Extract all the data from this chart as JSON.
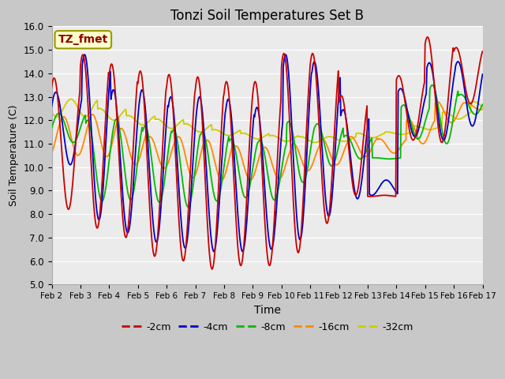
{
  "title": "Tonzi Soil Temperatures Set B",
  "xlabel": "Time",
  "ylabel": "Soil Temperature (C)",
  "label_box": "TZ_fmet",
  "ylim": [
    5.0,
    16.0
  ],
  "yticks": [
    5.0,
    6.0,
    7.0,
    8.0,
    9.0,
    10.0,
    11.0,
    12.0,
    13.0,
    14.0,
    15.0,
    16.0
  ],
  "xtick_labels": [
    "Feb 2",
    "Feb 3",
    "Feb 4",
    "Feb 5",
    "Feb 6",
    "Feb 7",
    "Feb 8",
    "Feb 9",
    "Feb 10",
    "Feb 11",
    "Feb 12",
    "Feb 13",
    "Feb 14",
    "Feb 15",
    "Feb 16",
    "Feb 17"
  ],
  "series_colors": [
    "#cc0000",
    "#0000cc",
    "#00bb00",
    "#ff8800",
    "#cccc00"
  ],
  "series_labels": [
    "-2cm",
    "-4cm",
    "-8cm",
    "-16cm",
    "-32cm"
  ],
  "plot_area_color": "#ebebeb",
  "grid_color": "#ffffff",
  "n_points_per_day": 48,
  "n_days": 15,
  "phase_lags_hours": [
    0.0,
    1.5,
    4.0,
    8.0,
    14.0
  ],
  "neg2cm_peaks": [
    13.8,
    14.8,
    14.4,
    14.1,
    13.95,
    13.85,
    13.65,
    13.65,
    14.85,
    14.85,
    13.05,
    8.75,
    13.9,
    15.55,
    15.1
  ],
  "neg2cm_troughs": [
    8.2,
    7.4,
    7.0,
    6.2,
    6.0,
    5.65,
    5.8,
    5.8,
    6.35,
    7.6,
    8.8,
    8.8,
    11.15,
    11.05,
    12.7
  ],
  "neg4cm_peaks": [
    13.2,
    14.8,
    13.3,
    13.3,
    13.0,
    13.0,
    12.9,
    12.55,
    14.8,
    14.5,
    12.45,
    8.8,
    13.35,
    14.45,
    14.5
  ],
  "neg4cm_troughs": [
    10.1,
    7.75,
    7.2,
    6.8,
    6.55,
    6.4,
    6.4,
    6.5,
    6.9,
    7.9,
    8.65,
    9.45,
    11.3,
    11.15,
    11.75
  ],
  "neg8cm_peaks": [
    12.3,
    12.0,
    12.05,
    11.75,
    11.6,
    11.5,
    11.2,
    11.15,
    11.95,
    11.85,
    11.35,
    10.4,
    12.65,
    13.5,
    13.1
  ],
  "neg8cm_troughs": [
    11.05,
    8.55,
    8.6,
    8.5,
    8.3,
    8.55,
    8.7,
    8.6,
    9.35,
    10.05,
    10.35,
    10.35,
    11.2,
    11.0,
    12.25
  ],
  "neg16cm_peaks": [
    12.15,
    12.25,
    11.65,
    11.3,
    11.3,
    11.15,
    10.9,
    10.85,
    11.0,
    11.2,
    11.3,
    11.2,
    12.05,
    12.8,
    12.75
  ],
  "neg16cm_troughs": [
    10.5,
    10.45,
    10.1,
    9.95,
    9.55,
    9.45,
    9.45,
    9.5,
    9.85,
    10.1,
    10.45,
    10.6,
    11.0,
    11.9,
    12.45
  ],
  "neg32cm_peaks": [
    12.9,
    12.5,
    12.2,
    12.05,
    11.85,
    11.6,
    11.45,
    11.35,
    11.3,
    11.3,
    11.45,
    11.5,
    11.75,
    12.35,
    12.8
  ],
  "neg32cm_troughs": [
    12.15,
    12.0,
    11.8,
    11.65,
    11.5,
    11.35,
    11.2,
    11.1,
    11.05,
    11.1,
    11.25,
    11.4,
    11.6,
    12.05,
    12.5
  ],
  "peak_hour": 14.0,
  "figsize": [
    6.4,
    4.8
  ],
  "dpi": 100
}
